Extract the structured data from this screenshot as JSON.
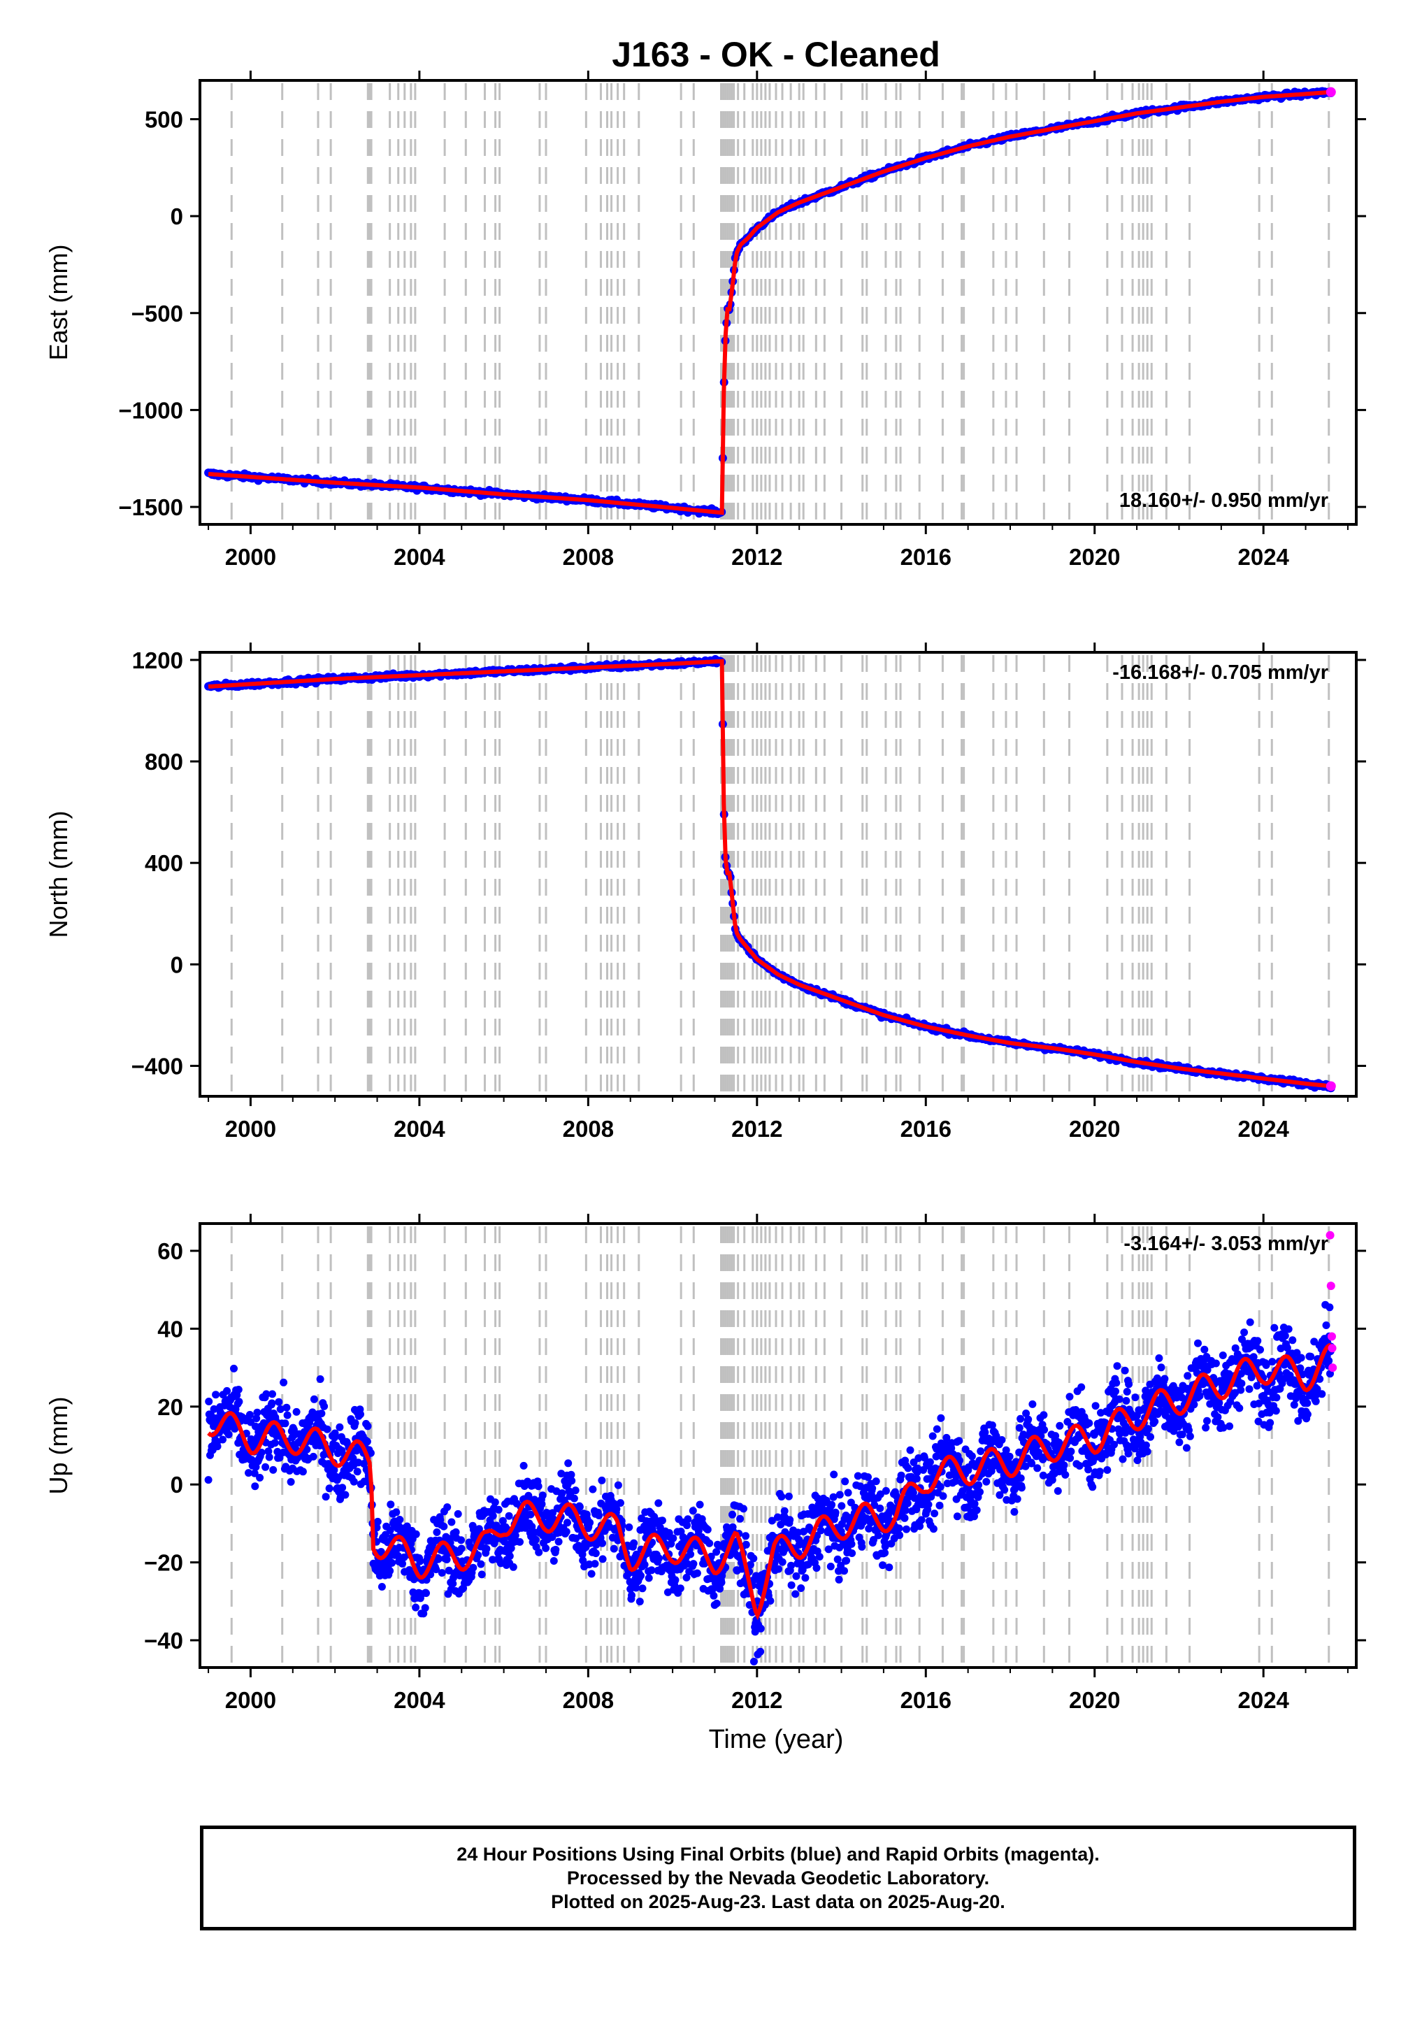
{
  "title": "J163  - OK - Cleaned",
  "xlabel": "Time (year)",
  "colors": {
    "final": "#0000ff",
    "rapid": "#ff00ff",
    "fit": "#ff0000",
    "events": "#c0c0c0"
  },
  "chart_data": [
    {
      "type": "scatter",
      "ylabel": "East (mm)",
      "rate_label": "18.160+/- 0.950 mm/yr",
      "xlim": [
        1998.8,
        2026.2
      ],
      "ylim": [
        -1590,
        700
      ],
      "xticks": [
        2000,
        2004,
        2008,
        2012,
        2016,
        2020,
        2024
      ],
      "yticks": [
        500,
        0,
        -500,
        -1000,
        -1500
      ],
      "ytick_labels": [
        "500",
        "0",
        "−500",
        "−1000",
        "−1500"
      ],
      "series": [
        {
          "values_x": [
            1999.0,
            2000.0,
            2002.0,
            2004.0,
            2006.0,
            2008.0,
            2010.0,
            2011.18,
            2011.2,
            2011.25,
            2011.3,
            2011.35,
            2011.45,
            2011.5,
            2011.6,
            2011.8,
            2012.0,
            2012.5,
            2013.0,
            2014.0,
            2015.0,
            2016.0,
            2017.0,
            2018.0,
            2019.0,
            2020.0,
            2021.0,
            2022.0,
            2023.0,
            2024.0,
            2025.0,
            2025.6
          ],
          "values_y": [
            -1330,
            -1345,
            -1375,
            -1400,
            -1435,
            -1465,
            -1505,
            -1530,
            -1000,
            -630,
            -480,
            -480,
            -300,
            -200,
            -150,
            -110,
            -60,
            20,
            70,
            150,
            230,
            300,
            360,
            410,
            450,
            490,
            530,
            560,
            590,
            615,
            630,
            640
          ]
        }
      ]
    },
    {
      "type": "scatter",
      "ylabel": "North (mm)",
      "rate_label": "-16.168+/- 0.705 mm/yr",
      "xlim": [
        1998.8,
        2026.2
      ],
      "ylim": [
        -520,
        1230
      ],
      "xticks": [
        2000,
        2004,
        2008,
        2012,
        2016,
        2020,
        2024
      ],
      "yticks": [
        1200,
        800,
        400,
        0,
        -400
      ],
      "ytick_labels": [
        "1200",
        "800",
        "400",
        "0",
        "−400"
      ],
      "series": [
        {
          "values_x": [
            1999.0,
            2000.0,
            2002.0,
            2004.0,
            2006.0,
            2008.0,
            2010.0,
            2011.18,
            2011.2,
            2011.25,
            2011.3,
            2011.35,
            2011.45,
            2011.5,
            2011.6,
            2011.8,
            2012.0,
            2012.5,
            2013.0,
            2014.0,
            2015.0,
            2016.0,
            2017.0,
            2018.0,
            2019.0,
            2020.0,
            2021.0,
            2022.0,
            2023.0,
            2024.0,
            2025.0,
            2025.6
          ],
          "values_y": [
            1095,
            1105,
            1125,
            1140,
            1155,
            1170,
            1185,
            1195,
            700,
            420,
            360,
            360,
            200,
            130,
            100,
            60,
            20,
            -40,
            -80,
            -140,
            -200,
            -245,
            -280,
            -310,
            -330,
            -355,
            -385,
            -410,
            -430,
            -450,
            -470,
            -480
          ]
        }
      ]
    },
    {
      "type": "scatter",
      "ylabel": "Up (mm)",
      "rate_label": "-3.164+/- 3.053 mm/yr",
      "xlim": [
        1998.8,
        2026.2
      ],
      "ylim": [
        -47,
        67
      ],
      "xticks": [
        2000,
        2004,
        2008,
        2012,
        2016,
        2020,
        2024
      ],
      "yticks": [
        60,
        40,
        20,
        0,
        -20,
        -40
      ],
      "ytick_labels": [
        "60",
        "40",
        "20",
        "0",
        "−20",
        "−40"
      ],
      "series": [
        {
          "values_x": [
            1999.0,
            2000.0,
            2001.0,
            2002.0,
            2002.85,
            2002.9,
            2004.0,
            2005.0,
            2005.6,
            2006.0,
            2007.0,
            2008.0,
            2008.7,
            2009.0,
            2010.0,
            2011.0,
            2011.5,
            2012.0,
            2012.4,
            2013.0,
            2014.0,
            2015.0,
            2015.3,
            2016.0,
            2017.0,
            2018.0,
            2019.0,
            2020.0,
            2021.0,
            2022.0,
            2023.0,
            2024.0,
            2025.0,
            2025.6
          ],
          "values_y": [
            17,
            12,
            12,
            9,
            6,
            -14,
            -20,
            -18,
            -16,
            -9,
            -8,
            -10,
            -12,
            -18,
            -16,
            -19,
            -16,
            -30,
            -18,
            -15,
            -10,
            -8,
            -8,
            2,
            4,
            6,
            10,
            12,
            18,
            22,
            26,
            30,
            28,
            32
          ]
        },
        {
          "name": "rapid",
          "values_x": [
            2025.58,
            2025.6,
            2025.62,
            2025.63,
            2025.64
          ],
          "values_y": [
            64,
            51,
            38,
            35,
            30
          ]
        }
      ]
    }
  ],
  "event_years": [
    1999.55,
    2000.75,
    2001.6,
    2001.9,
    2002.78,
    2002.82,
    2002.86,
    2003.3,
    2003.5,
    2003.65,
    2003.8,
    2003.9,
    2004.6,
    2005.1,
    2005.55,
    2005.8,
    2005.9,
    2006.85,
    2007.0,
    2007.95,
    2008.3,
    2008.45,
    2008.55,
    2008.7,
    2008.85,
    2009.2,
    2010.2,
    2010.5,
    2011.15,
    2011.2,
    2011.25,
    2011.3,
    2011.35,
    2011.4,
    2011.45,
    2011.55,
    2011.7,
    2011.9,
    2012.0,
    2012.1,
    2012.2,
    2012.3,
    2012.45,
    2012.6,
    2012.8,
    2013.0,
    2013.1,
    2013.4,
    2013.6,
    2014.0,
    2014.5,
    2014.6,
    2015.05,
    2015.3,
    2015.4,
    2015.85,
    2016.4,
    2016.85,
    2016.9,
    2017.6,
    2017.9,
    2018.15,
    2018.8,
    2019.4,
    2020.3,
    2020.65,
    2020.9,
    2021.05,
    2021.15,
    2021.25,
    2021.35,
    2021.7,
    2022.25,
    2023.9,
    2024.2,
    2025.55
  ],
  "legend": {
    "line1": "24 Hour Positions Using Final Orbits (blue) and Rapid Orbits (magenta).",
    "line2": "Processed by the Nevada Geodetic Laboratory.",
    "line3": "Plotted on 2025-Aug-23. Last data on 2025-Aug-20."
  }
}
